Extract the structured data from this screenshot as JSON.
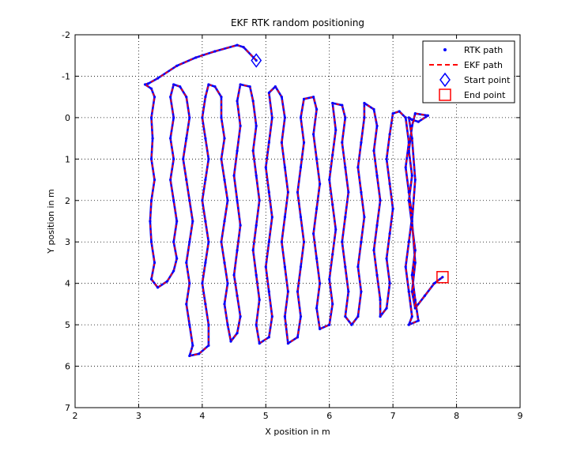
{
  "chart_data": {
    "type": "line",
    "title": "EKF RTK random positioning",
    "xlabel": "X position in m",
    "ylabel": "Y position in m",
    "xlim": [
      2,
      9
    ],
    "ylim": [
      -2,
      7
    ],
    "y_reversed": true,
    "x_ticks": [
      "2",
      "3",
      "4",
      "5",
      "6",
      "7",
      "8",
      "9"
    ],
    "y_ticks": [
      "-2",
      "-1",
      "0",
      "1",
      "2",
      "3",
      "4",
      "5",
      "6",
      "7"
    ],
    "grid": true,
    "legend_position": "top-right",
    "legend": [
      {
        "label": "RTK path",
        "marker": "dot",
        "color": "#0000ff"
      },
      {
        "label": "EKF path",
        "marker": "dashed-line",
        "color": "#ff0000"
      },
      {
        "label": "Start point",
        "marker": "diamond",
        "color": "#0000ff"
      },
      {
        "label": "End point",
        "marker": "square",
        "color": "#ff0000"
      }
    ],
    "series": [
      {
        "name": "RTK path",
        "color": "#0000ff",
        "points": [
          [
            4.85,
            -1.38
          ],
          [
            4.65,
            -1.7
          ],
          [
            4.55,
            -1.75
          ],
          [
            4.2,
            -1.6
          ],
          [
            3.9,
            -1.45
          ],
          [
            3.6,
            -1.25
          ],
          [
            3.3,
            -0.95
          ],
          [
            3.15,
            -0.82
          ],
          [
            3.1,
            -0.8
          ],
          [
            3.2,
            -0.7
          ],
          [
            3.25,
            -0.5
          ],
          [
            3.2,
            0.0
          ],
          [
            3.22,
            0.5
          ],
          [
            3.2,
            1.0
          ],
          [
            3.25,
            1.5
          ],
          [
            3.2,
            2.0
          ],
          [
            3.18,
            2.5
          ],
          [
            3.2,
            3.0
          ],
          [
            3.25,
            3.5
          ],
          [
            3.2,
            3.9
          ],
          [
            3.3,
            4.1
          ],
          [
            3.45,
            3.95
          ],
          [
            3.55,
            3.7
          ],
          [
            3.6,
            3.4
          ],
          [
            3.55,
            3.0
          ],
          [
            3.6,
            2.5
          ],
          [
            3.55,
            2.0
          ],
          [
            3.5,
            1.5
          ],
          [
            3.55,
            1.0
          ],
          [
            3.5,
            0.5
          ],
          [
            3.55,
            0.0
          ],
          [
            3.5,
            -0.5
          ],
          [
            3.55,
            -0.8
          ],
          [
            3.65,
            -0.75
          ],
          [
            3.75,
            -0.5
          ],
          [
            3.8,
            0.0
          ],
          [
            3.75,
            0.5
          ],
          [
            3.7,
            1.0
          ],
          [
            3.75,
            1.5
          ],
          [
            3.8,
            2.0
          ],
          [
            3.85,
            2.5
          ],
          [
            3.8,
            3.0
          ],
          [
            3.75,
            3.5
          ],
          [
            3.8,
            4.0
          ],
          [
            3.75,
            4.5
          ],
          [
            3.8,
            5.0
          ],
          [
            3.85,
            5.5
          ],
          [
            3.8,
            5.75
          ],
          [
            3.95,
            5.7
          ],
          [
            4.1,
            5.5
          ],
          [
            4.1,
            5.0
          ],
          [
            4.05,
            4.5
          ],
          [
            4.0,
            4.0
          ],
          [
            4.05,
            3.5
          ],
          [
            4.1,
            3.0
          ],
          [
            4.05,
            2.5
          ],
          [
            4.0,
            2.0
          ],
          [
            4.05,
            1.5
          ],
          [
            4.1,
            1.0
          ],
          [
            4.05,
            0.5
          ],
          [
            4.0,
            0.0
          ],
          [
            4.05,
            -0.5
          ],
          [
            4.1,
            -0.8
          ],
          [
            4.2,
            -0.75
          ],
          [
            4.3,
            -0.5
          ],
          [
            4.3,
            0.0
          ],
          [
            4.35,
            0.5
          ],
          [
            4.3,
            1.0
          ],
          [
            4.35,
            1.5
          ],
          [
            4.4,
            2.0
          ],
          [
            4.35,
            2.5
          ],
          [
            4.3,
            3.0
          ],
          [
            4.35,
            3.5
          ],
          [
            4.4,
            4.0
          ],
          [
            4.35,
            4.5
          ],
          [
            4.4,
            5.0
          ],
          [
            4.45,
            5.4
          ],
          [
            4.55,
            5.2
          ],
          [
            4.6,
            4.8
          ],
          [
            4.55,
            4.3
          ],
          [
            4.5,
            3.8
          ],
          [
            4.55,
            3.2
          ],
          [
            4.6,
            2.6
          ],
          [
            4.55,
            2.0
          ],
          [
            4.5,
            1.4
          ],
          [
            4.55,
            0.8
          ],
          [
            4.6,
            0.2
          ],
          [
            4.55,
            -0.4
          ],
          [
            4.6,
            -0.8
          ],
          [
            4.75,
            -0.75
          ],
          [
            4.8,
            -0.4
          ],
          [
            4.85,
            0.2
          ],
          [
            4.8,
            0.8
          ],
          [
            4.85,
            1.4
          ],
          [
            4.9,
            2.0
          ],
          [
            4.85,
            2.6
          ],
          [
            4.8,
            3.2
          ],
          [
            4.85,
            3.8
          ],
          [
            4.9,
            4.4
          ],
          [
            4.85,
            5.0
          ],
          [
            4.9,
            5.45
          ],
          [
            5.05,
            5.3
          ],
          [
            5.1,
            4.8
          ],
          [
            5.05,
            4.2
          ],
          [
            5.0,
            3.6
          ],
          [
            5.05,
            3.0
          ],
          [
            5.1,
            2.4
          ],
          [
            5.05,
            1.8
          ],
          [
            5.0,
            1.2
          ],
          [
            5.05,
            0.6
          ],
          [
            5.1,
            0.0
          ],
          [
            5.05,
            -0.6
          ],
          [
            5.15,
            -0.75
          ],
          [
            5.25,
            -0.5
          ],
          [
            5.3,
            0.0
          ],
          [
            5.25,
            0.6
          ],
          [
            5.3,
            1.2
          ],
          [
            5.35,
            1.8
          ],
          [
            5.3,
            2.4
          ],
          [
            5.25,
            3.0
          ],
          [
            5.3,
            3.6
          ],
          [
            5.35,
            4.2
          ],
          [
            5.3,
            4.8
          ],
          [
            5.35,
            5.45
          ],
          [
            5.5,
            5.3
          ],
          [
            5.55,
            4.8
          ],
          [
            5.5,
            4.2
          ],
          [
            5.55,
            3.6
          ],
          [
            5.6,
            3.0
          ],
          [
            5.55,
            2.4
          ],
          [
            5.5,
            1.8
          ],
          [
            5.55,
            1.2
          ],
          [
            5.6,
            0.6
          ],
          [
            5.55,
            0.0
          ],
          [
            5.6,
            -0.45
          ],
          [
            5.75,
            -0.5
          ],
          [
            5.8,
            -0.2
          ],
          [
            5.75,
            0.4
          ],
          [
            5.8,
            1.0
          ],
          [
            5.85,
            1.6
          ],
          [
            5.8,
            2.2
          ],
          [
            5.75,
            2.8
          ],
          [
            5.8,
            3.4
          ],
          [
            5.85,
            4.0
          ],
          [
            5.8,
            4.6
          ],
          [
            5.85,
            5.1
          ],
          [
            6.0,
            5.0
          ],
          [
            6.05,
            4.5
          ],
          [
            6.0,
            3.9
          ],
          [
            6.05,
            3.3
          ],
          [
            6.1,
            2.7
          ],
          [
            6.05,
            2.1
          ],
          [
            6.0,
            1.5
          ],
          [
            6.05,
            0.9
          ],
          [
            6.1,
            0.3
          ],
          [
            6.05,
            -0.35
          ],
          [
            6.2,
            -0.3
          ],
          [
            6.25,
            0.0
          ],
          [
            6.2,
            0.6
          ],
          [
            6.25,
            1.2
          ],
          [
            6.3,
            1.8
          ],
          [
            6.25,
            2.4
          ],
          [
            6.2,
            3.0
          ],
          [
            6.25,
            3.6
          ],
          [
            6.3,
            4.2
          ],
          [
            6.25,
            4.8
          ],
          [
            6.35,
            5.0
          ],
          [
            6.45,
            4.8
          ],
          [
            6.5,
            4.2
          ],
          [
            6.45,
            3.6
          ],
          [
            6.5,
            3.0
          ],
          [
            6.55,
            2.4
          ],
          [
            6.5,
            1.8
          ],
          [
            6.45,
            1.2
          ],
          [
            6.5,
            0.6
          ],
          [
            6.55,
            0.0
          ],
          [
            6.55,
            -0.35
          ],
          [
            6.7,
            -0.2
          ],
          [
            6.75,
            0.2
          ],
          [
            6.7,
            0.8
          ],
          [
            6.75,
            1.4
          ],
          [
            6.8,
            2.0
          ],
          [
            6.75,
            2.6
          ],
          [
            6.7,
            3.2
          ],
          [
            6.75,
            3.8
          ],
          [
            6.8,
            4.4
          ],
          [
            6.8,
            4.8
          ],
          [
            6.9,
            4.6
          ],
          [
            6.95,
            4.0
          ],
          [
            6.9,
            3.4
          ],
          [
            6.95,
            2.8
          ],
          [
            7.0,
            2.2
          ],
          [
            6.95,
            1.6
          ],
          [
            6.9,
            1.0
          ],
          [
            6.95,
            0.4
          ],
          [
            7.0,
            -0.1
          ],
          [
            7.1,
            -0.15
          ],
          [
            7.2,
            0.0
          ],
          [
            7.25,
            0.6
          ],
          [
            7.2,
            1.2
          ],
          [
            7.25,
            1.8
          ],
          [
            7.3,
            2.4
          ],
          [
            7.25,
            3.0
          ],
          [
            7.2,
            3.6
          ],
          [
            7.25,
            4.2
          ],
          [
            7.3,
            4.8
          ],
          [
            7.25,
            5.0
          ],
          [
            7.4,
            4.9
          ],
          [
            7.35,
            4.4
          ],
          [
            7.3,
            3.8
          ],
          [
            7.35,
            3.2
          ],
          [
            7.3,
            2.6
          ],
          [
            7.25,
            2.0
          ],
          [
            7.3,
            1.4
          ],
          [
            7.25,
            0.8
          ],
          [
            7.3,
            0.2
          ],
          [
            7.35,
            -0.1
          ],
          [
            7.55,
            -0.05
          ],
          [
            7.4,
            0.1
          ],
          [
            7.3,
            0.05
          ],
          [
            7.25,
            0.0
          ],
          [
            7.3,
            0.5
          ],
          [
            7.35,
            1.5
          ],
          [
            7.3,
            2.5
          ],
          [
            7.35,
            3.5
          ],
          [
            7.3,
            4.2
          ],
          [
            7.35,
            4.6
          ],
          [
            7.5,
            4.3
          ],
          [
            7.65,
            4.0
          ],
          [
            7.78,
            3.85
          ]
        ]
      },
      {
        "name": "EKF path",
        "color": "#ff0000",
        "same_as": "RTK path"
      }
    ],
    "start_point": [
      4.85,
      -1.38
    ],
    "end_point": [
      7.78,
      3.85
    ],
    "colors": {
      "rtk": "#0000ff",
      "ekf": "#ff0000",
      "grid": "#000000",
      "figure_bg": "#ffffff"
    }
  }
}
